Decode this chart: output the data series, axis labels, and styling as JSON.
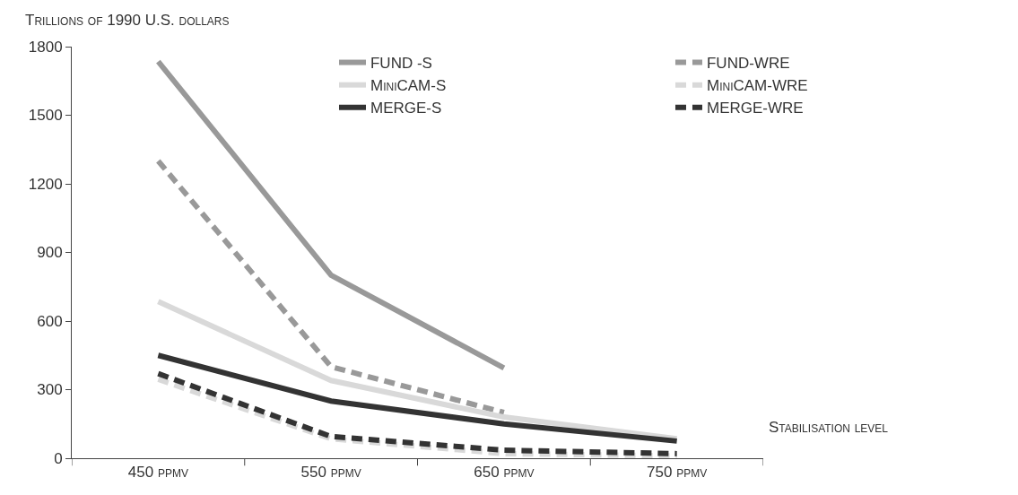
{
  "chart_data": {
    "type": "line",
    "ylabel": "Trillions of 1990 U.S. dollars",
    "xlabel": "Stabilisation level",
    "categories": [
      "450 ppmv",
      "550 ppmv",
      "650 ppmv",
      "750 ppmv"
    ],
    "ylim": [
      0,
      1800
    ],
    "yticks": [
      0,
      300,
      600,
      900,
      1200,
      1500,
      1800
    ],
    "grid": false,
    "legend": "top",
    "marker": "none",
    "series": [
      {
        "name": "FUND -S",
        "color": "#999999",
        "line_style": "solid",
        "values": [
          1735,
          800,
          395,
          null
        ]
      },
      {
        "name": "FUND-WRE",
        "color": "#999999",
        "line_style": "dashed",
        "values": [
          1300,
          400,
          200,
          null
        ]
      },
      {
        "name": "MiniCAM-S",
        "color": "#d9d9d9",
        "line_style": "solid",
        "values": [
          685,
          340,
          180,
          85
        ]
      },
      {
        "name": "MiniCAM-WRE",
        "color": "#d9d9d9",
        "line_style": "dashed",
        "values": [
          345,
          85,
          20,
          10
        ]
      },
      {
        "name": "MERGE-S",
        "color": "#333333",
        "line_style": "solid",
        "values": [
          450,
          250,
          150,
          75
        ]
      },
      {
        "name": "MERGE-WRE",
        "color": "#333333",
        "line_style": "dashed",
        "values": [
          370,
          95,
          35,
          20
        ]
      }
    ]
  }
}
